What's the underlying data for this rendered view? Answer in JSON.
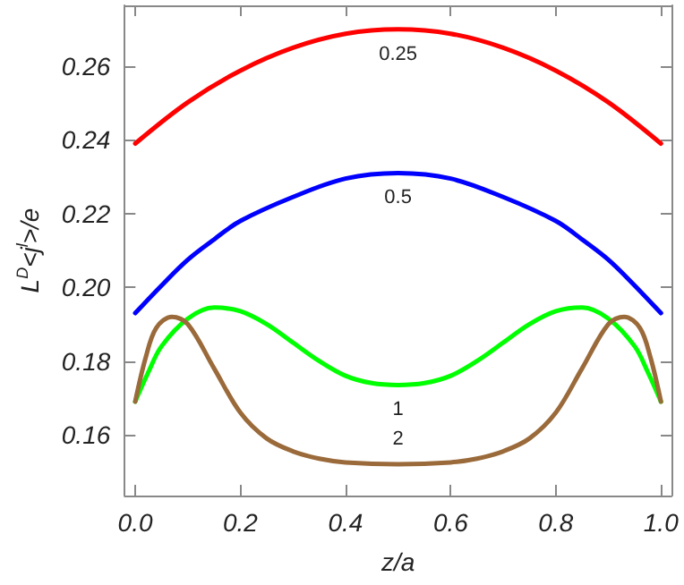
{
  "chart_data": {
    "type": "line",
    "xlabel": "z/a",
    "ylabel": "L$^{D}$<j$^{l}$>/e",
    "xlim": [
      -0.02,
      1.02
    ],
    "xticks": [
      {
        "value": 0,
        "label": "0.0"
      },
      0.2,
      0.4,
      0.6,
      0.8,
      {
        "value": 1,
        "label": "1.0"
      }
    ],
    "ylim": [
      0.1435,
      0.2765
    ],
    "yticks": [
      0.16,
      0.18,
      {
        "value": 0.2,
        "label": "0.20"
      },
      0.22,
      0.24,
      0.26
    ],
    "grid": false,
    "marker": "none",
    "line_style": "solid",
    "series": [
      {
        "name": "0.25",
        "color": "#ff0000",
        "x": [
          0,
          0.1,
          0.2,
          0.3,
          0.4,
          0.5,
          0.6,
          0.7,
          0.8,
          0.9,
          1
        ],
        "values": [
          0.239,
          0.2502,
          0.2588,
          0.265,
          0.2688,
          0.27,
          0.2688,
          0.265,
          0.2588,
          0.2502,
          0.239
        ]
      },
      {
        "name": "0.5",
        "color": "#0000ff",
        "x": [
          0,
          0.05,
          0.1,
          0.15,
          0.2,
          0.3,
          0.4,
          0.5,
          0.6,
          0.7,
          0.8,
          0.85,
          0.9,
          0.95,
          1
        ],
        "values": [
          0.193,
          0.2005,
          0.2075,
          0.213,
          0.218,
          0.2245,
          0.2295,
          0.231,
          0.2295,
          0.2245,
          0.218,
          0.213,
          0.2075,
          0.2005,
          0.193
        ]
      },
      {
        "name": "1",
        "color": "#00ff00",
        "x": [
          0,
          0.025,
          0.05,
          0.1,
          0.15,
          0.2,
          0.25,
          0.3,
          0.35,
          0.4,
          0.45,
          0.5,
          0.55,
          0.6,
          0.65,
          0.7,
          0.75,
          0.8,
          0.85,
          0.9,
          0.95,
          0.975,
          1
        ],
        "values": [
          0.169,
          0.177,
          0.184,
          0.1915,
          0.1945,
          0.1935,
          0.19,
          0.185,
          0.18,
          0.176,
          0.174,
          0.1735,
          0.174,
          0.176,
          0.18,
          0.185,
          0.19,
          0.1935,
          0.1945,
          0.1915,
          0.184,
          0.177,
          0.169
        ]
      },
      {
        "name": "2",
        "color": "#9a6a3a",
        "x": [
          0,
          0.02,
          0.04,
          0.07,
          0.1,
          0.15,
          0.2,
          0.25,
          0.3,
          0.35,
          0.4,
          0.5,
          0.6,
          0.65,
          0.7,
          0.75,
          0.8,
          0.85,
          0.9,
          0.93,
          0.96,
          0.98,
          1
        ],
        "values": [
          0.169,
          0.181,
          0.189,
          0.192,
          0.19,
          0.178,
          0.166,
          0.159,
          0.1555,
          0.1535,
          0.1525,
          0.152,
          0.1525,
          0.1535,
          0.1555,
          0.159,
          0.166,
          0.178,
          0.19,
          0.192,
          0.189,
          0.181,
          0.169
        ]
      }
    ]
  }
}
